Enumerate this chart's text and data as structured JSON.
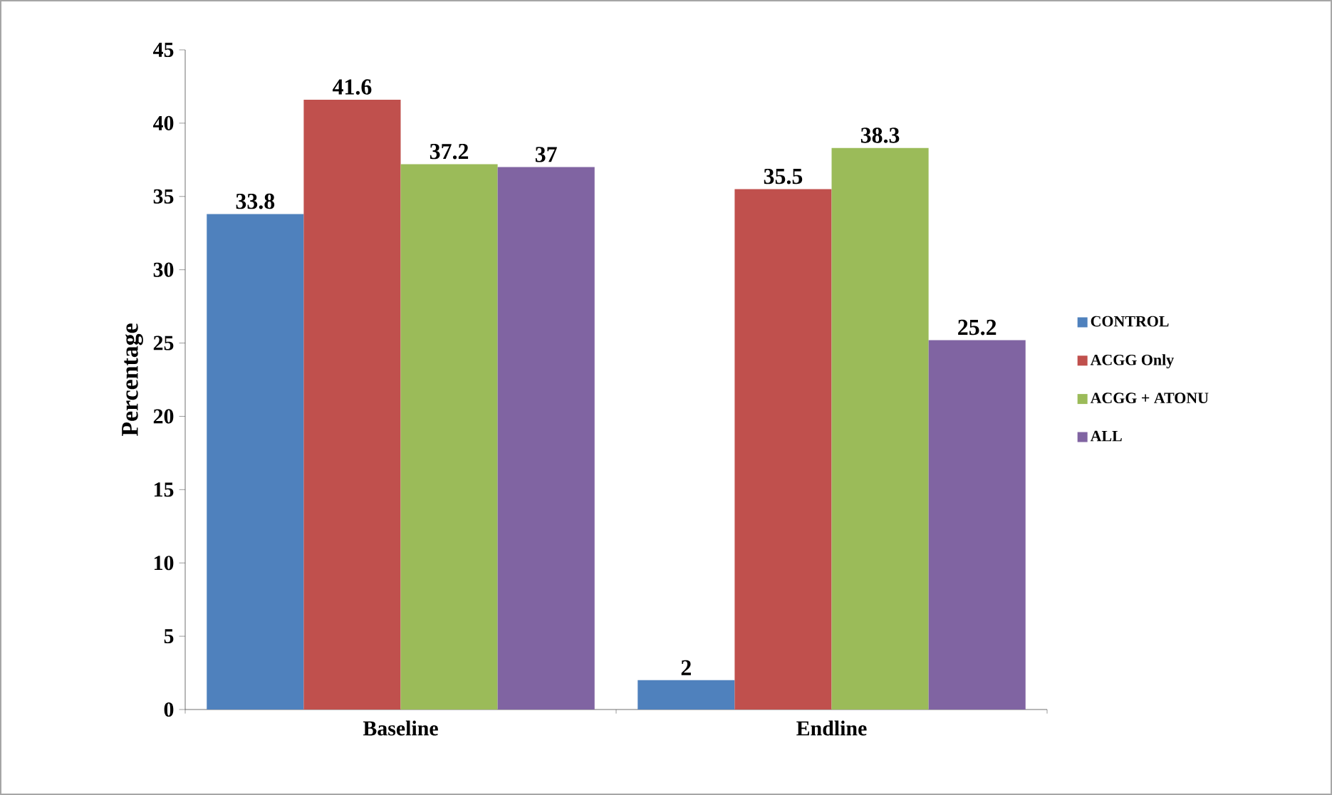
{
  "chart_data": {
    "type": "bar",
    "ylabel": "Percentage",
    "categories": [
      "Baseline",
      "Endline"
    ],
    "series": [
      {
        "name": "CONTROL",
        "color": "#4f81bd",
        "values": [
          33.8,
          2
        ]
      },
      {
        "name": "ACGG Only",
        "color": "#c0504d",
        "values": [
          41.6,
          35.5
        ]
      },
      {
        "name": "ACGG + ATONU",
        "color": "#9bbb59",
        "values": [
          37.2,
          38.3
        ]
      },
      {
        "name": "ALL",
        "color": "#8064a2",
        "values": [
          37,
          25.2
        ]
      }
    ],
    "ylim": [
      0,
      45
    ],
    "yticks": [
      0,
      5,
      10,
      15,
      20,
      25,
      30,
      35,
      40,
      45
    ],
    "data_labels": true,
    "legend": "right",
    "grid": false
  }
}
